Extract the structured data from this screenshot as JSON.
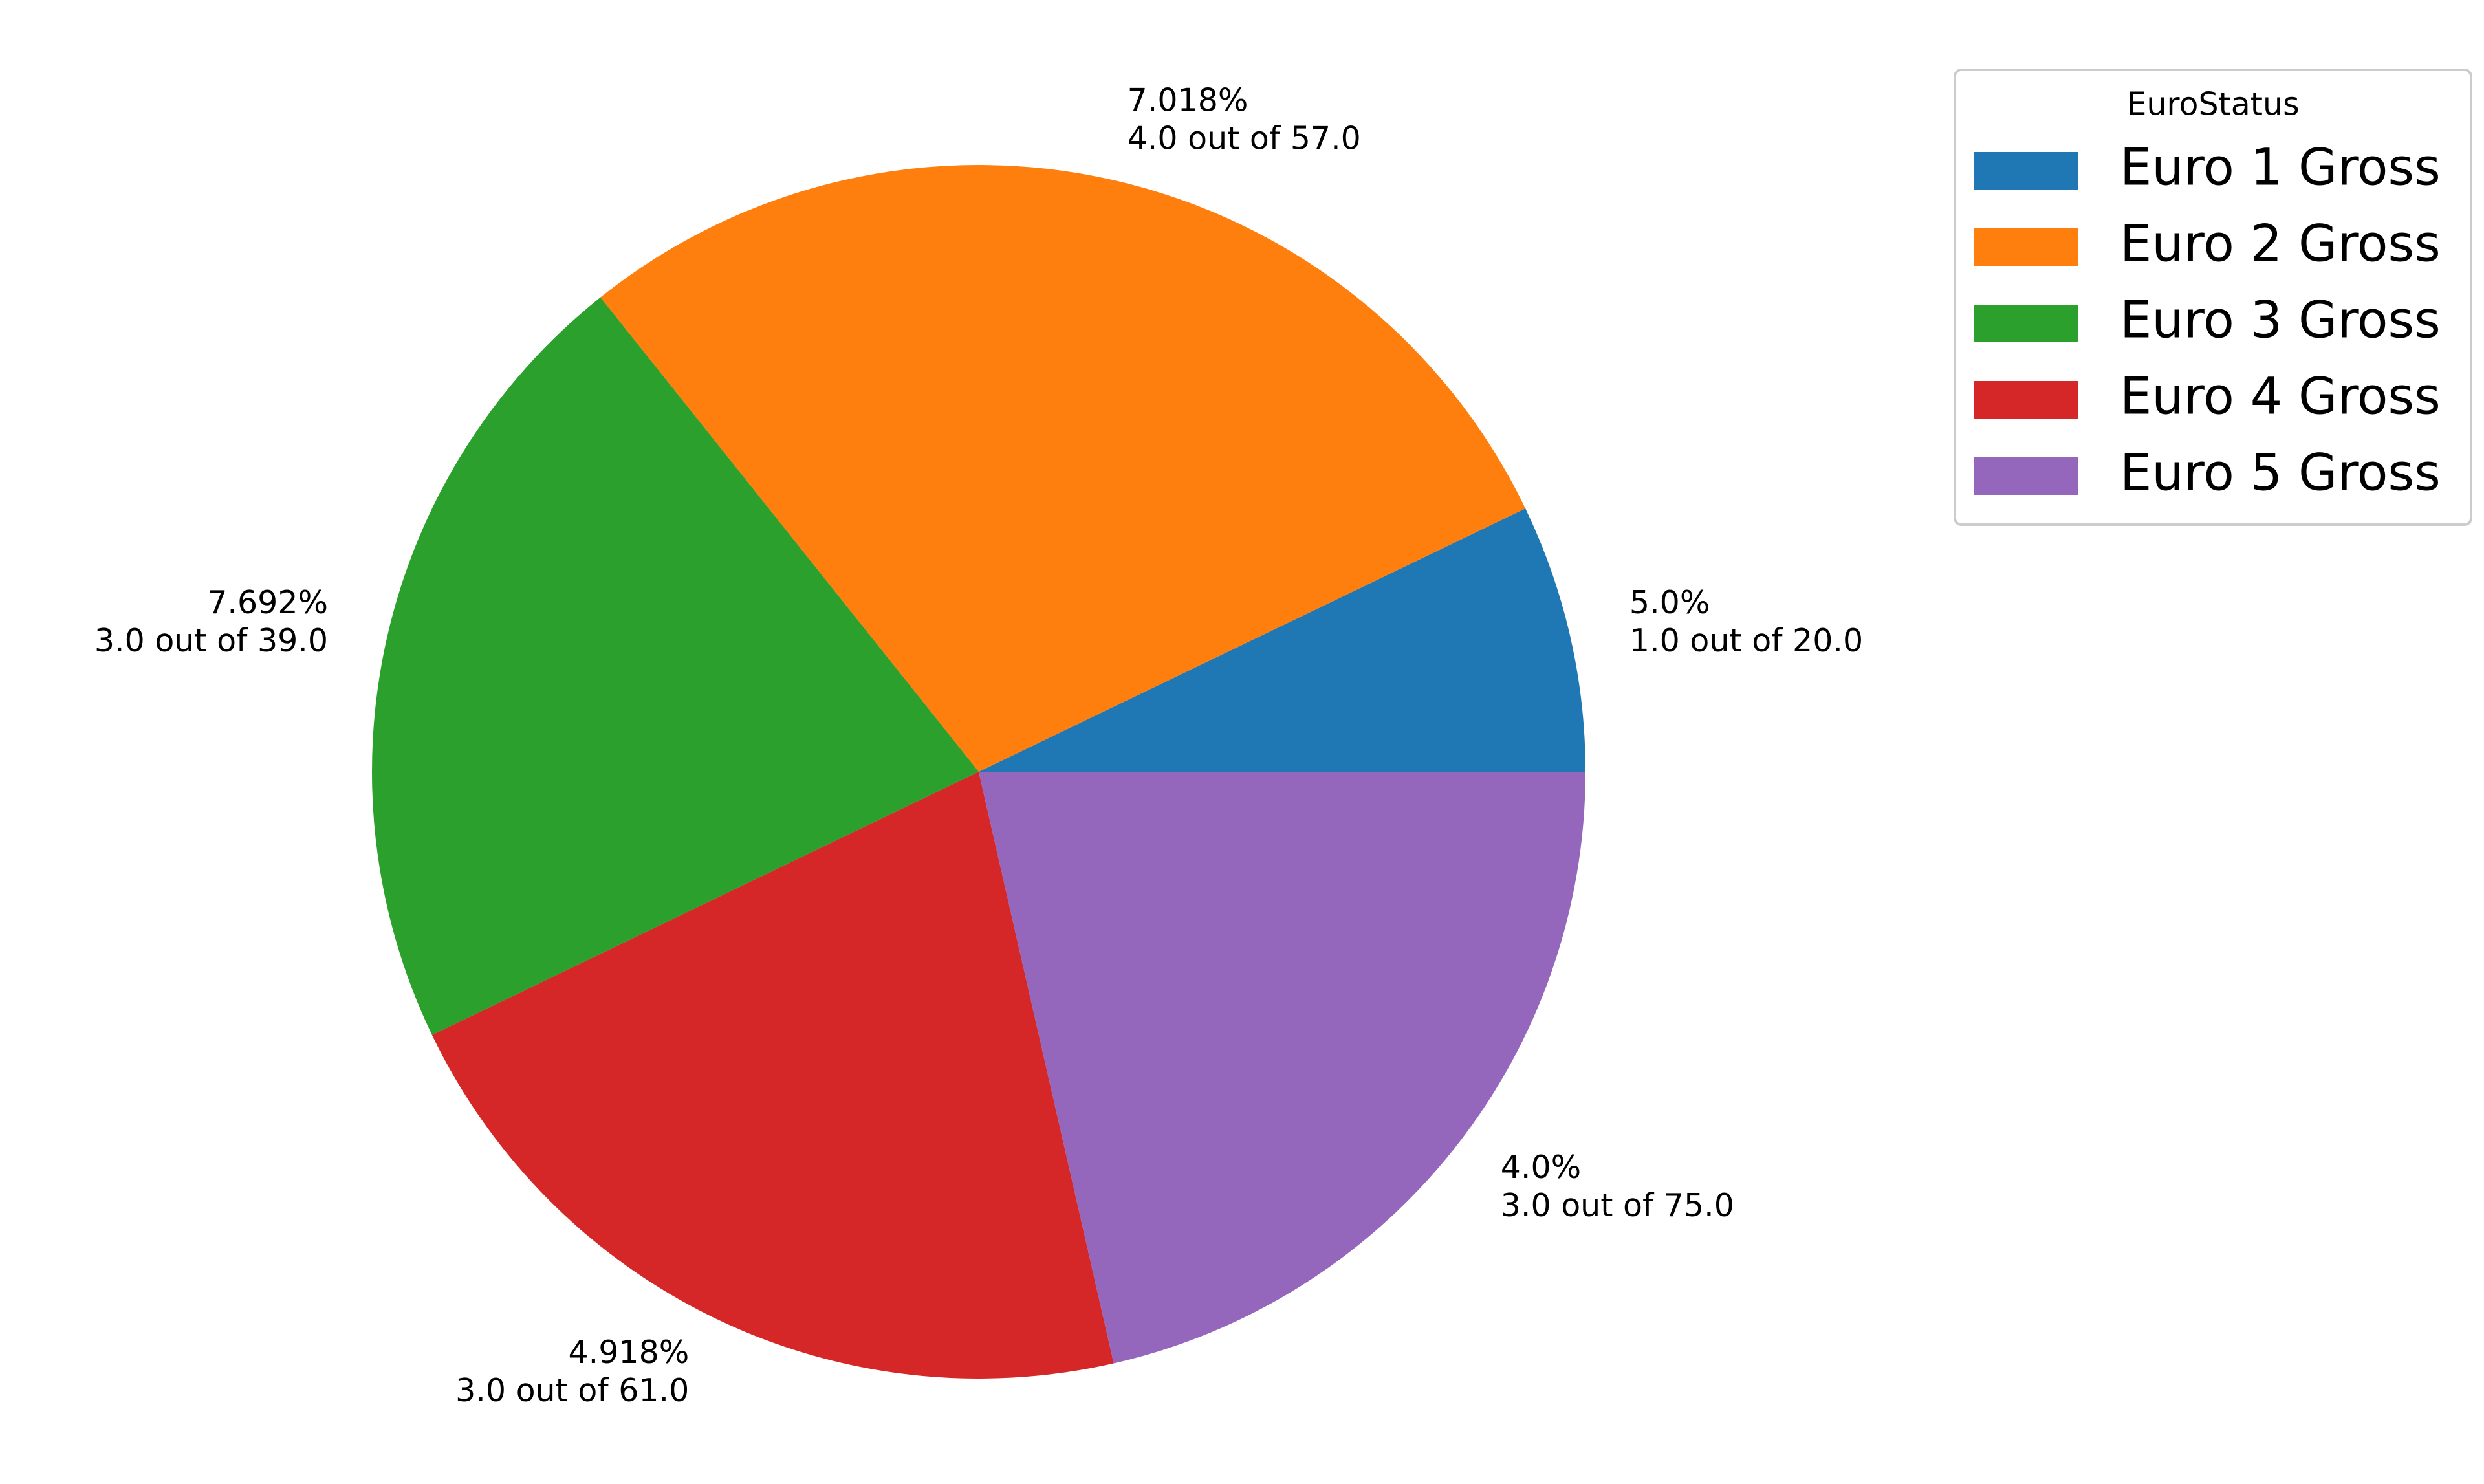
{
  "chart_data": {
    "type": "pie",
    "categories": [
      "Euro 1 Gross",
      "Euro 2 Gross",
      "Euro 3 Gross",
      "Euro 4 Gross",
      "Euro 5 Gross"
    ],
    "values": [
      1,
      4,
      3,
      3,
      3
    ],
    "value_labels": [
      "1.0 out of 20.0",
      "4.0 out of 57.0",
      "3.0 out of 39.0",
      "3.0 out of 61.0",
      "3.0 out of 75.0"
    ],
    "percent_labels": [
      "5.0%",
      "7.018%",
      "7.692%",
      "4.918%",
      "4.0%"
    ],
    "colors": [
      "#1f77b4",
      "#ff7f0e",
      "#2ca02c",
      "#d62728",
      "#9467bd"
    ],
    "legend_title": "EuroStatus",
    "legend": "upper right"
  }
}
